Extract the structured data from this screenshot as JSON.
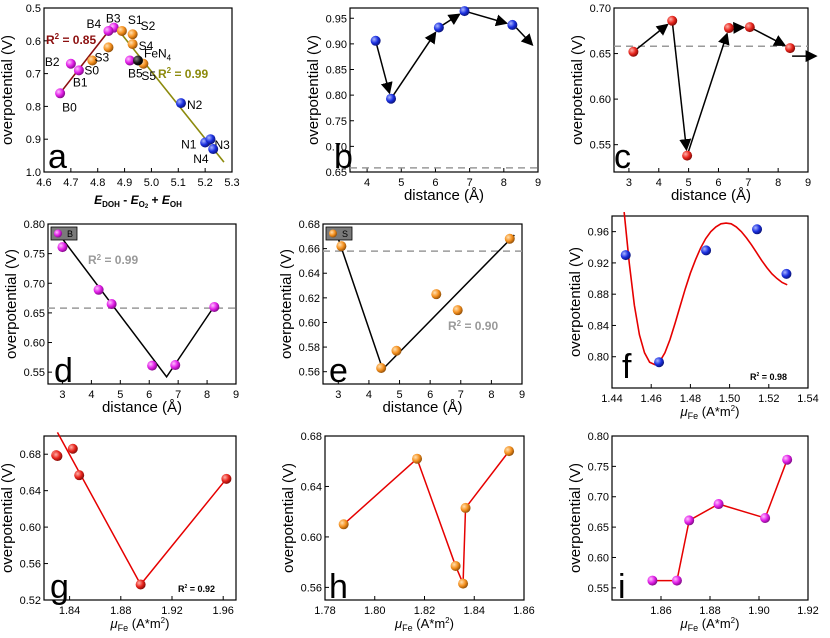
{
  "figure": {
    "ylabel": "overpotential (V)"
  },
  "colors": {
    "blue": "#1a2fe0",
    "red": "#e8241c",
    "magenta": "#e21ee8",
    "orange": "#f5901e",
    "olive": "#8c8a0c",
    "darkred": "#8b0e0e",
    "gray": "#9a9a9a",
    "redline": "#e60000"
  },
  "chart_data": [
    {
      "panel": "a",
      "type": "scatter",
      "xlabel": "E_DOH - E_O2 + E_OH",
      "xlabel_parts": [
        "E",
        "DOH",
        " - ",
        "E",
        "O",
        "2",
        " + ",
        "E",
        "OH"
      ],
      "ylabel": "overpotential (V)",
      "xlim": [
        4.6,
        5.3
      ],
      "ylim": [
        1.0,
        0.5
      ],
      "xticks": [
        "4.6",
        "4.7",
        "4.8",
        "4.9",
        "5.0",
        "5.1",
        "5.2",
        "5.3"
      ],
      "yticks": [
        "0.5",
        "0.6",
        "0.7",
        "0.8",
        "0.9",
        "1.0"
      ],
      "points": [
        {
          "label": "B0",
          "x": 4.66,
          "y": 0.76,
          "color": "magenta"
        },
        {
          "label": "B1",
          "x": 4.73,
          "y": 0.69,
          "color": "magenta"
        },
        {
          "label": "B2",
          "x": 4.7,
          "y": 0.67,
          "color": "magenta"
        },
        {
          "label": "B3",
          "x": 4.86,
          "y": 0.56,
          "color": "magenta"
        },
        {
          "label": "B4",
          "x": 4.84,
          "y": 0.57,
          "color": "magenta"
        },
        {
          "label": "B5",
          "x": 4.92,
          "y": 0.66,
          "color": "magenta"
        },
        {
          "label": "S0",
          "x": 4.78,
          "y": 0.66,
          "color": "orange"
        },
        {
          "label": "S1",
          "x": 4.89,
          "y": 0.57,
          "color": "orange"
        },
        {
          "label": "S2",
          "x": 4.93,
          "y": 0.58,
          "color": "orange"
        },
        {
          "label": "S3",
          "x": 4.84,
          "y": 0.62,
          "color": "orange"
        },
        {
          "label": "S4",
          "x": 4.93,
          "y": 0.61,
          "color": "orange"
        },
        {
          "label": "S5",
          "x": 4.97,
          "y": 0.67,
          "color": "orange"
        },
        {
          "label": "FeN4",
          "x": 4.95,
          "y": 0.66,
          "color": "black"
        },
        {
          "label": "N1",
          "x": 5.2,
          "y": 0.91,
          "color": "blue"
        },
        {
          "label": "N2",
          "x": 5.11,
          "y": 0.79,
          "color": "blue"
        },
        {
          "label": "N3",
          "x": 5.22,
          "y": 0.9,
          "color": "blue"
        },
        {
          "label": "N4",
          "x": 5.23,
          "y": 0.93,
          "color": "blue"
        }
      ],
      "fits": [
        {
          "x": [
            4.65,
            4.86
          ],
          "y": [
            0.77,
            0.55
          ],
          "color": "darkred",
          "label_r2": "R",
          "label_val": " = 0.85"
        },
        {
          "x": [
            4.86,
            5.27
          ],
          "y": [
            0.55,
            0.97
          ],
          "color": "olive",
          "label_r2": "R",
          "label_val": " = 0.99"
        }
      ],
      "fen4_sub": "4"
    },
    {
      "panel": "b",
      "type": "line",
      "xlabel": "distance (Å)",
      "ylabel": "overpotential (V)",
      "xlim": [
        3.5,
        9
      ],
      "ylim": [
        0.65,
        0.97
      ],
      "xticks": [
        "4",
        "5",
        "6",
        "7",
        "8",
        "9"
      ],
      "yticks": [
        "0.65",
        "0.70",
        "0.75",
        "0.80",
        "0.85",
        "0.90",
        "0.95"
      ],
      "x": [
        4.25,
        4.7,
        6.1,
        6.85,
        8.25
      ],
      "y": [
        0.906,
        0.793,
        0.932,
        0.964,
        0.937
      ],
      "color": "blue",
      "ref": 0.658,
      "arrows": true
    },
    {
      "panel": "c",
      "type": "line",
      "xlabel": "distance (Å)",
      "ylabel": "overpotential (V)",
      "xlim": [
        2.5,
        9
      ],
      "ylim": [
        0.52,
        0.7
      ],
      "xticks": [
        "3",
        "4",
        "5",
        "6",
        "7",
        "8",
        "9"
      ],
      "yticks": [
        "0.55",
        "0.60",
        "0.65",
        "0.70"
      ],
      "x": [
        3.15,
        4.45,
        4.95,
        6.35,
        7.05,
        8.4
      ],
      "y": [
        0.652,
        0.686,
        0.538,
        0.678,
        0.679,
        0.656
      ],
      "color": "red",
      "ref": 0.658,
      "arrows": true
    },
    {
      "panel": "d",
      "type": "scatter",
      "xlabel": "distance (Å)",
      "ylabel": "overpotential (V)",
      "xlim": [
        2.5,
        9
      ],
      "ylim": [
        0.53,
        0.8
      ],
      "xticks": [
        "3",
        "4",
        "5",
        "6",
        "7",
        "8",
        "9"
      ],
      "yticks": [
        "0.55",
        "0.60",
        "0.65",
        "0.70",
        "0.75",
        "0.80"
      ],
      "x": [
        3.0,
        4.25,
        4.7,
        6.1,
        6.9,
        8.25
      ],
      "y": [
        0.761,
        0.689,
        0.665,
        0.561,
        0.562,
        0.66
      ],
      "color": "magenta",
      "ref": 0.658,
      "legend": "B",
      "fit_x": [
        3.0,
        6.6,
        8.3
      ],
      "fit_y": [
        0.775,
        0.542,
        0.665
      ],
      "r2_label": "R",
      "r2_val": " = 0.99"
    },
    {
      "panel": "e",
      "type": "scatter",
      "xlabel": "distance (Å)",
      "ylabel": "overpotential (V)",
      "xlim": [
        2.5,
        9
      ],
      "ylim": [
        0.55,
        0.68
      ],
      "xticks": [
        "3",
        "4",
        "5",
        "6",
        "7",
        "8",
        "9"
      ],
      "yticks": [
        "0.56",
        "0.58",
        "0.60",
        "0.62",
        "0.64",
        "0.66",
        "0.68"
      ],
      "x": [
        3.1,
        4.4,
        4.9,
        6.2,
        6.9,
        8.6
      ],
      "y": [
        0.662,
        0.563,
        0.577,
        0.623,
        0.61,
        0.668
      ],
      "color": "orange",
      "ref": 0.658,
      "legend": "S",
      "fit_x": [
        3.0,
        4.45,
        8.75
      ],
      "fit_y": [
        0.668,
        0.562,
        0.671
      ],
      "r2_label": "R",
      "r2_val": " = 0.90"
    },
    {
      "panel": "f",
      "type": "scatter",
      "xlabel": "μFe (A*m2)",
      "ylabel": "overpotential (V)",
      "xlim": [
        1.44,
        1.54
      ],
      "ylim": [
        0.76,
        0.98
      ],
      "xticks": [
        "1.44",
        "1.46",
        "1.48",
        "1.50",
        "1.52",
        "1.54"
      ],
      "yticks": [
        "0.80",
        "0.84",
        "0.88",
        "0.92",
        "0.96"
      ],
      "x": [
        1.447,
        1.464,
        1.488,
        1.514,
        1.529
      ],
      "y": [
        0.93,
        0.793,
        0.936,
        0.963,
        0.906
      ],
      "color": "blue",
      "r2": "R2 = 0.98",
      "r2_label": "R",
      "r2_val": " = 0.98",
      "curve": [
        [
          1.4462,
          0.985
        ],
        [
          1.4488,
          0.92
        ],
        [
          1.4514,
          0.866
        ],
        [
          1.454,
          0.828
        ],
        [
          1.4566,
          0.805
        ],
        [
          1.4592,
          0.793
        ],
        [
          1.4618,
          0.79
        ],
        [
          1.4644,
          0.794
        ],
        [
          1.467,
          0.805
        ],
        [
          1.4696,
          0.822
        ],
        [
          1.4722,
          0.843
        ],
        [
          1.4748,
          0.865
        ],
        [
          1.4774,
          0.887
        ],
        [
          1.48,
          0.907
        ],
        [
          1.4826,
          0.924
        ],
        [
          1.4852,
          0.939
        ],
        [
          1.4878,
          0.951
        ],
        [
          1.4904,
          0.96
        ],
        [
          1.493,
          0.966
        ],
        [
          1.4956,
          0.97
        ],
        [
          1.4982,
          0.971
        ],
        [
          1.5008,
          0.97
        ],
        [
          1.5034,
          0.966
        ],
        [
          1.506,
          0.96
        ],
        [
          1.5086,
          0.952
        ],
        [
          1.5112,
          0.943
        ],
        [
          1.5138,
          0.933
        ],
        [
          1.5164,
          0.923
        ],
        [
          1.519,
          0.914
        ],
        [
          1.5216,
          0.906
        ],
        [
          1.5242,
          0.9
        ],
        [
          1.5268,
          0.895
        ],
        [
          1.5294,
          0.892
        ]
      ]
    },
    {
      "panel": "g",
      "type": "line",
      "xlabel": "μFe (A*m2)",
      "ylabel": "overpotential (V)",
      "xlim": [
        1.82,
        1.97
      ],
      "ylim": [
        0.52,
        0.7
      ],
      "xticks": [
        "1.84",
        "1.88",
        "1.92",
        "1.96"
      ],
      "yticks": [
        "0.52",
        "0.56",
        "0.60",
        "0.64",
        "0.68"
      ],
      "x": [
        1.8295,
        1.8305,
        1.8425,
        1.8475,
        1.8955,
        1.9625
      ],
      "y": [
        0.679,
        0.678,
        0.686,
        0.657,
        0.537,
        0.653
      ],
      "color": "red",
      "r2_label": "R",
      "r2_val": " = 0.92",
      "fit_x": [
        1.8305,
        1.8955,
        1.9625
      ],
      "fit_y": [
        0.704,
        0.537,
        0.653
      ]
    },
    {
      "panel": "h",
      "type": "line",
      "xlabel": "μFe (A*m2)",
      "ylabel": "overpotential (V)",
      "xlim": [
        1.78,
        1.86
      ],
      "ylim": [
        0.55,
        0.68
      ],
      "xticks": [
        "1.78",
        "1.80",
        "1.82",
        "1.84",
        "1.86"
      ],
      "yticks": [
        "0.56",
        "0.60",
        "0.64",
        "0.68"
      ],
      "x": [
        1.7875,
        1.817,
        1.8325,
        1.8355,
        1.8365,
        1.854
      ],
      "y": [
        0.61,
        0.662,
        0.577,
        0.563,
        0.623,
        0.668
      ],
      "color": "orange"
    },
    {
      "panel": "i",
      "type": "line",
      "xlabel": "μFe (A*m2)",
      "ylabel": "overpotential (V)",
      "xlim": [
        1.84,
        1.92
      ],
      "ylim": [
        0.53,
        0.8
      ],
      "xticks": [
        "1.86",
        "1.88",
        "1.90",
        "1.92"
      ],
      "yticks": [
        "0.55",
        "0.60",
        "0.65",
        "0.70",
        "0.75",
        "0.80"
      ],
      "x": [
        1.8565,
        1.8665,
        1.8715,
        1.8835,
        1.9025,
        1.9115
      ],
      "y": [
        0.562,
        0.562,
        0.661,
        0.688,
        0.665,
        0.761
      ],
      "color": "magenta"
    }
  ]
}
